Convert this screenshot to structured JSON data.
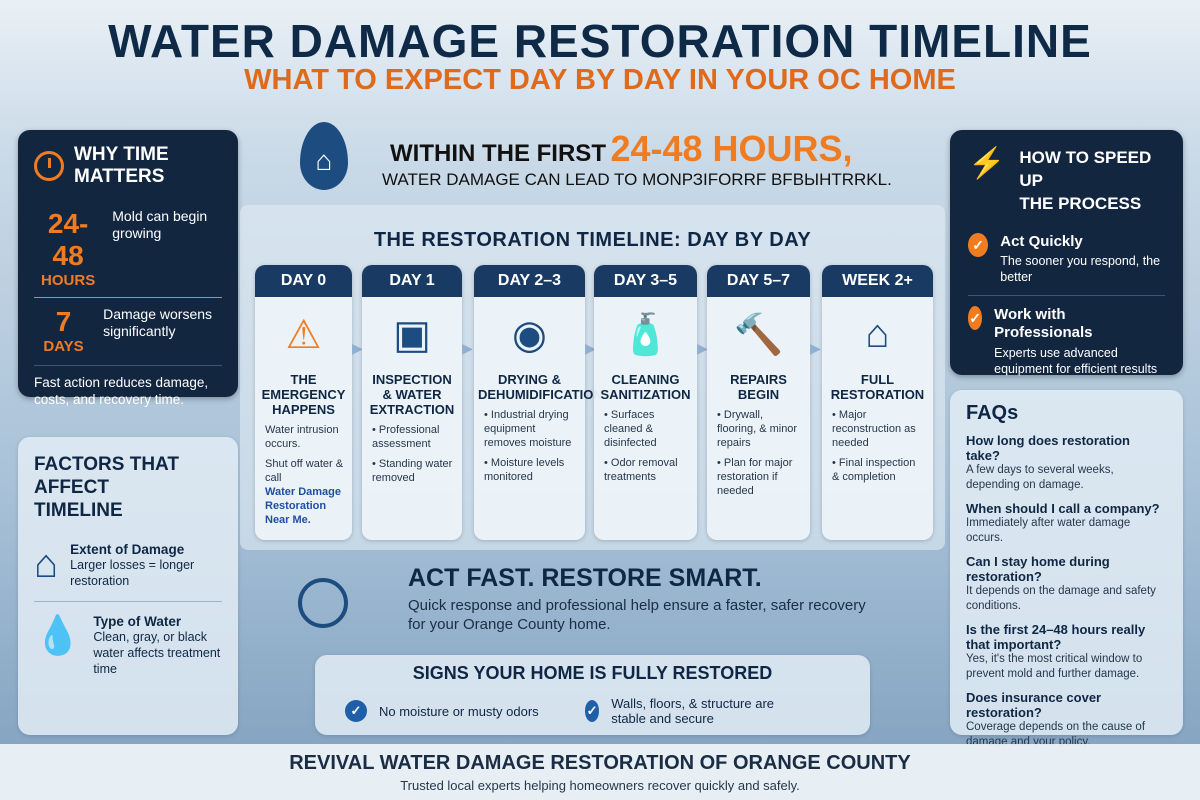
{
  "header": {
    "title": "WATER DAMAGE RESTORATION TIMELINE",
    "subtitle": "WHAT TO EXPECT DAY BY DAY IN YOUR OC HOME"
  },
  "why": {
    "title_1": "WHY TIME",
    "title_2": "MATTERS",
    "stat1_value": "24-48",
    "stat1_unit": "HOURS",
    "stat1_text": "Mold can begin growing",
    "stat2_value": "7",
    "stat2_unit": "DAYS",
    "stat2_text": "Damage worsens significantly",
    "footer": "Fast action reduces damage, costs, and recovery time."
  },
  "factors": {
    "title": "FACTORS THAT AFFECT TIMELINE",
    "items": [
      {
        "label": "Extent of Damage",
        "text": "Larger losses = longer restoration"
      },
      {
        "label": "Type of Water",
        "text": "Clean, gray, or black water affects treatment time"
      }
    ]
  },
  "headline": {
    "line1": "WITHIN THE FIRST",
    "highlight": "24-48 HOURS,",
    "line2": "WATER DAMAGE CAN LEAD TO MONРЗIFORRF BFBЫHTRRKL."
  },
  "timeline": {
    "title": "THE RESTORATION TIMELINE: DAY BY DAY",
    "days": [
      {
        "day": "DAY 0",
        "title": "THE EMERGENCY HAPPENS",
        "icon": "warning-icon",
        "body": [
          "Water intrusion occurs.",
          "Shut off water & call"
        ],
        "link": "Water Damage Restoration Near Me."
      },
      {
        "day": "DAY 1",
        "title": "INSPECTION & WATER EXTRACTION",
        "icon": "moisture-meter-icon",
        "body": [
          "• Professional assessment",
          "• Standing water removed"
        ]
      },
      {
        "day": "DAY 2–3",
        "title": "DRYING & DEHUMIDIFICATION",
        "icon": "air-mover-icon",
        "body": [
          "• Industrial drying equipment removes moisture",
          "• Moisture levels monitored"
        ]
      },
      {
        "day": "DAY 3–5",
        "title": "CLEANING SANITIZATION",
        "icon": "spray-bottle-icon",
        "body": [
          "• Surfaces cleaned & disinfected",
          "• Odor removal treatments"
        ]
      },
      {
        "day": "DAY 5–7",
        "title": "REPAIRS BEGIN",
        "icon": "hammer-icon",
        "body": [
          "• Drywall, flooring, & minor repairs",
          "• Plan for major restoration if needed"
        ]
      },
      {
        "day": "WEEK 2+",
        "title": "FULL RESTORATION",
        "icon": "house-icon",
        "body": [
          "• Major reconstruction as needed",
          "• Final inspection & completion"
        ]
      }
    ]
  },
  "act": {
    "title": "ACT FAST. RESTORE SMART.",
    "text": "Quick response and professional help ensure a faster, safer recovery for your Orange County home."
  },
  "signs": {
    "title": "SIGNS YOUR HOME IS FULLY RESTORED",
    "items": [
      "No moisture or musty odors",
      "Walls, floors, & structure are stable and secure"
    ]
  },
  "speed": {
    "title_1": "HOW TO SPEED UP",
    "title_2": "THE PROCESS",
    "items": [
      {
        "label": "Act Quickly",
        "text": "The sooner you respond, the better"
      },
      {
        "label": "Work with Professionals",
        "text": "Experts use advanced equipment for efficient results"
      }
    ]
  },
  "faq": {
    "title": "FAQs",
    "items": [
      {
        "q": "How long does restoration take?",
        "a": "A few days to several weeks, depending on damage."
      },
      {
        "q": "When should I call a company?",
        "a": "Immediately after water damage occurs."
      },
      {
        "q": "Can I stay home during restoration?",
        "a": "It depends on the damage and safety conditions."
      },
      {
        "q": "Is the first 24–48 hours really that important?",
        "a": "Yes, it's the most critical window to prevent mold and further damage."
      },
      {
        "q": "Does insurance cover restoration?",
        "a": "Coverage depends on the cause of damage and your policy."
      }
    ]
  },
  "footer": {
    "company": "REVIVAL WATER DAMAGE RESTORATION OF ORANGE COUNTY",
    "tagline": "Trusted local experts helping homeowners recover quickly and safely."
  },
  "colors": {
    "navy": "#13263f",
    "orange": "#f07c22",
    "accent_blue": "#1f5fa8"
  }
}
